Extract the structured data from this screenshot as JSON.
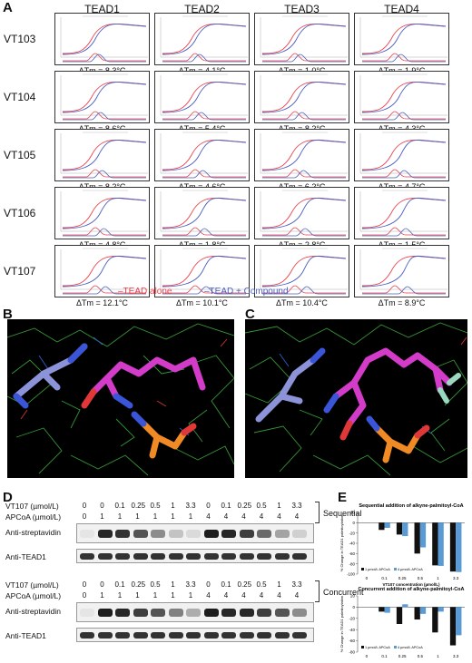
{
  "panels": {
    "A": "A",
    "B": "B",
    "C": "C",
    "D": "D",
    "E": "E"
  },
  "tsa": {
    "columns": [
      "TEAD1",
      "TEAD2",
      "TEAD3",
      "TEAD4"
    ],
    "rows": [
      "VT103",
      "VT104",
      "VT105",
      "VT106",
      "VT107"
    ],
    "dtm_prefix": "ΔTm = ",
    "dtm": [
      [
        "8.3°C",
        "4.1°C",
        "1.0°C",
        "1.9°C"
      ],
      [
        "8.6°C",
        "5.4°C",
        "8.2°C",
        "4.3°C"
      ],
      [
        "8.2°C",
        "4.6°C",
        "6.2°C",
        "4.7°C"
      ],
      [
        "4.8°C",
        "1.8°C",
        "2.8°C",
        "1.5°C"
      ],
      [
        "12.1°C",
        "10.1°C",
        "10.4°C",
        "8.9°C"
      ]
    ],
    "legend": {
      "alone": "–TEAD alone",
      "compound": "–TEAD + Compound"
    },
    "colors": {
      "alone": "#e8404a",
      "compound": "#4a5fc1"
    }
  },
  "blots": {
    "sequential": {
      "title": "Sequential",
      "row1_label": "VT107 (µmol/L)",
      "row1": [
        "0",
        "0",
        "0.1",
        "0.25",
        "0.5",
        "1",
        "3.3",
        "0",
        "0.1",
        "0.25",
        "0.5",
        "1",
        "3.3"
      ],
      "row2_label": "APCoA (µmol/L)",
      "row2": [
        "0",
        "1",
        "1",
        "1",
        "1",
        "1",
        "1",
        "4",
        "4",
        "4",
        "4",
        "4",
        "4"
      ],
      "strep_label": "Anti-streptavidin",
      "tead_label": "Anti-TEAD1"
    },
    "concurrent": {
      "title": "Concurrent",
      "row1_label": "VT107 (µmol/L)",
      "row1": [
        "0",
        "0",
        "0.1",
        "0.25",
        "0.5",
        "1",
        "3.3",
        "0",
        "0.1",
        "0.25",
        "0.5",
        "1",
        "3.3"
      ],
      "row2_label": "APCoA (µmol/L)",
      "row2": [
        "0",
        "1",
        "1",
        "1",
        "1",
        "1",
        "1",
        "4",
        "4",
        "4",
        "4",
        "4",
        "4"
      ],
      "strep_label": "Anti-streptavidin",
      "tead_label": "Anti-TEAD1"
    }
  },
  "chart_data": [
    {
      "type": "bar",
      "title": "Sequential addition of alkyne-palmitoyl-CoA",
      "xlabel": "VT107 concentration (µmol/L)",
      "ylabel": "% Change in TEAD1 palmitoylation",
      "categories": [
        "0",
        "0.1",
        "0.25",
        "0.5",
        "1",
        "3.3"
      ],
      "yticks": [
        "20",
        "0",
        "-20",
        "-40",
        "-60",
        "-80",
        "-100"
      ],
      "ylim": [
        -100,
        20
      ],
      "series": [
        {
          "name": "1 µmol/L APCoA",
          "color": "#111111",
          "values": [
            0,
            -14,
            -23,
            -60,
            -83,
            -95
          ]
        },
        {
          "name": "4 µmol/L APCoA",
          "color": "#5b9bd5",
          "values": [
            0,
            -10,
            -26,
            -48,
            -84,
            -96
          ]
        }
      ],
      "legend": "bottom-left"
    },
    {
      "type": "bar",
      "title": "Concurrent addition of alkyne-palmitoyl-CoA",
      "xlabel": "VT107 concentration (µmol/L)",
      "ylabel": "% Change in TEAD1 palmitoylation",
      "categories": [
        "0",
        "0.1",
        "0.25",
        "0.5",
        "1",
        "3.3"
      ],
      "yticks": [
        "20",
        "0",
        "-20",
        "-40",
        "-60",
        "-80"
      ],
      "ylim": [
        -80,
        20
      ],
      "series": [
        {
          "name": "1 µmol/L APCoA",
          "color": "#111111",
          "values": [
            0,
            -8,
            -30,
            -22,
            -45,
            -68
          ]
        },
        {
          "name": "4 µmol/L APCoA",
          "color": "#5b9bd5",
          "values": [
            0,
            -10,
            5,
            -12,
            -8,
            -50
          ]
        }
      ],
      "legend": "bottom-left"
    }
  ]
}
